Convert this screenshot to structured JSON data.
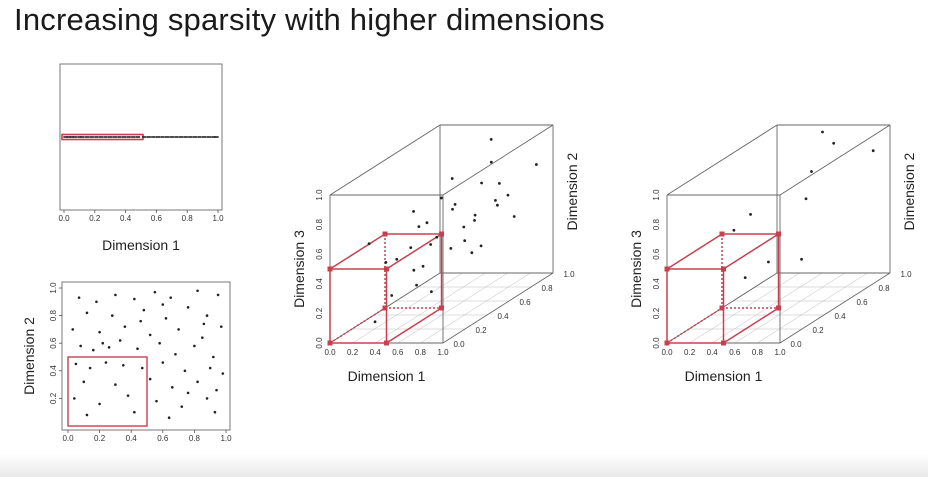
{
  "slide": {
    "title": "Increasing sparsity with higher dimensions"
  },
  "colors": {
    "highlight": "#c8404e",
    "points": "#222222",
    "axes": "#555555",
    "grid": "#bbbbbb"
  },
  "chart_data": [
    {
      "type": "scatter",
      "dimensions": 1,
      "xlabel": "Dimension 1",
      "xlim": [
        0,
        1
      ],
      "x_ticks": [
        "0.0",
        "0.2",
        "0.4",
        "0.6",
        "0.8",
        "1.0"
      ],
      "highlight_region": {
        "x": [
          0,
          0.5
        ]
      },
      "points_x": [
        0.01,
        0.03,
        0.05,
        0.07,
        0.1,
        0.12,
        0.15,
        0.18,
        0.21,
        0.24,
        0.27,
        0.3,
        0.33,
        0.36,
        0.39,
        0.42,
        0.45,
        0.48,
        0.52,
        0.55,
        0.58,
        0.61,
        0.64,
        0.67,
        0.7,
        0.73,
        0.76,
        0.79,
        0.82,
        0.85,
        0.88,
        0.91,
        0.94,
        0.97,
        0.99
      ]
    },
    {
      "type": "scatter",
      "dimensions": 2,
      "xlabel": "Dimension 1",
      "ylabel": "Dimension 2",
      "xlim": [
        0,
        1
      ],
      "ylim": [
        0,
        1
      ],
      "x_ticks": [
        "0.0",
        "0.2",
        "0.4",
        "0.6",
        "0.8",
        "1.0"
      ],
      "y_ticks": [
        "0.2",
        "0.4",
        "0.6",
        "0.8",
        "1.0"
      ],
      "highlight_region": {
        "x": [
          0,
          0.5
        ],
        "y": [
          0,
          0.5
        ]
      },
      "points": [
        [
          0.07,
          0.93
        ],
        [
          0.18,
          0.9
        ],
        [
          0.3,
          0.95
        ],
        [
          0.42,
          0.92
        ],
        [
          0.55,
          0.97
        ],
        [
          0.65,
          0.93
        ],
        [
          0.82,
          0.98
        ],
        [
          0.95,
          0.95
        ],
        [
          0.12,
          0.82
        ],
        [
          0.28,
          0.8
        ],
        [
          0.48,
          0.84
        ],
        [
          0.62,
          0.78
        ],
        [
          0.76,
          0.86
        ],
        [
          0.88,
          0.8
        ],
        [
          0.03,
          0.7
        ],
        [
          0.2,
          0.68
        ],
        [
          0.36,
          0.72
        ],
        [
          0.52,
          0.66
        ],
        [
          0.7,
          0.7
        ],
        [
          0.85,
          0.64
        ],
        [
          0.97,
          0.72
        ],
        [
          0.08,
          0.58
        ],
        [
          0.16,
          0.55
        ],
        [
          0.22,
          0.6
        ],
        [
          0.26,
          0.57
        ],
        [
          0.44,
          0.56
        ],
        [
          0.58,
          0.6
        ],
        [
          0.68,
          0.52
        ],
        [
          0.8,
          0.58
        ],
        [
          0.92,
          0.5
        ],
        [
          0.05,
          0.45
        ],
        [
          0.14,
          0.42
        ],
        [
          0.24,
          0.46
        ],
        [
          0.35,
          0.44
        ],
        [
          0.47,
          0.42
        ],
        [
          0.6,
          0.46
        ],
        [
          0.74,
          0.4
        ],
        [
          0.9,
          0.42
        ],
        [
          0.98,
          0.38
        ],
        [
          0.1,
          0.32
        ],
        [
          0.3,
          0.3
        ],
        [
          0.52,
          0.34
        ],
        [
          0.66,
          0.28
        ],
        [
          0.82,
          0.32
        ],
        [
          0.94,
          0.26
        ],
        [
          0.04,
          0.2
        ],
        [
          0.2,
          0.16
        ],
        [
          0.38,
          0.22
        ],
        [
          0.56,
          0.18
        ],
        [
          0.72,
          0.14
        ],
        [
          0.88,
          0.2
        ],
        [
          0.12,
          0.08
        ],
        [
          0.42,
          0.1
        ],
        [
          0.64,
          0.06
        ],
        [
          0.93,
          0.1
        ],
        [
          0.76,
          0.24
        ],
        [
          0.33,
          0.62
        ],
        [
          0.6,
          0.88
        ],
        [
          0.46,
          0.76
        ],
        [
          0.86,
          0.74
        ]
      ]
    },
    {
      "type": "scatter",
      "dimensions": 3,
      "xlabel": "Dimension 1",
      "ylabel": "Dimension 2",
      "zlabel": "Dimension 3",
      "xlim": [
        0,
        1
      ],
      "ylim": [
        0,
        1
      ],
      "zlim": [
        0,
        1
      ],
      "x_ticks": [
        "0.0",
        "0.2",
        "0.4",
        "0.6",
        "0.8",
        "1.0"
      ],
      "y_ticks": [
        "0.0",
        "0.2",
        "0.4",
        "0.6",
        "0.8",
        "1.0"
      ],
      "z_ticks": [
        "0.0",
        "0.2",
        "0.4",
        "0.6",
        "0.8",
        "1.0"
      ],
      "highlight_region": {
        "x": [
          0,
          0.5
        ],
        "y": [
          0,
          0.5
        ],
        "z": [
          0,
          0.5
        ]
      },
      "points": [
        [
          0.55,
          0.9,
          0.95
        ],
        [
          0.6,
          0.85,
          0.82
        ],
        [
          0.72,
          0.8,
          0.7
        ],
        [
          0.65,
          0.95,
          0.55
        ],
        [
          0.4,
          0.7,
          0.78
        ],
        [
          0.5,
          0.6,
          0.62
        ],
        [
          0.45,
          0.55,
          0.72
        ],
        [
          0.62,
          0.5,
          0.7
        ],
        [
          0.7,
          0.6,
          0.58
        ],
        [
          0.8,
          0.7,
          0.6
        ],
        [
          0.9,
          0.75,
          0.5
        ],
        [
          0.95,
          0.9,
          0.78
        ],
        [
          0.35,
          0.4,
          0.7
        ],
        [
          0.3,
          0.5,
          0.55
        ],
        [
          0.55,
          0.35,
          0.5
        ],
        [
          0.68,
          0.4,
          0.45
        ],
        [
          0.85,
          0.5,
          0.42
        ],
        [
          0.9,
          0.3,
          0.55
        ],
        [
          0.75,
          0.2,
          0.62
        ],
        [
          0.58,
          0.25,
          0.4
        ],
        [
          0.45,
          0.3,
          0.35
        ],
        [
          0.62,
          0.15,
          0.32
        ],
        [
          0.8,
          0.1,
          0.3
        ],
        [
          0.3,
          0.2,
          0.45
        ],
        [
          0.2,
          0.15,
          0.6
        ],
        [
          0.35,
          0.05,
          0.12
        ],
        [
          0.6,
          0.6,
          0.5
        ],
        [
          0.5,
          0.8,
          0.45
        ],
        [
          0.72,
          0.55,
          0.35
        ],
        [
          0.42,
          0.45,
          0.6
        ],
        [
          0.25,
          0.35,
          0.4
        ],
        [
          0.52,
          0.2,
          0.55
        ],
        [
          0.66,
          0.7,
          0.75
        ],
        [
          0.88,
          0.6,
          0.68
        ],
        [
          0.4,
          0.15,
          0.25
        ]
      ]
    },
    {
      "type": "scatter",
      "dimensions": 3,
      "xlabel": "Dimension 1",
      "ylabel": "Dimension 2",
      "zlabel": "Dimension 3",
      "xlim": [
        0,
        1
      ],
      "ylim": [
        0,
        1
      ],
      "zlim": [
        0,
        1
      ],
      "x_ticks": [
        "0.0",
        "0.2",
        "0.4",
        "0.6",
        "0.8",
        "1.0"
      ],
      "y_ticks": [
        "0.0",
        "0.2",
        "0.4",
        "0.6",
        "0.8",
        "1.0"
      ],
      "z_ticks": [
        "0.0",
        "0.2",
        "0.4",
        "0.6",
        "0.8",
        "1.0"
      ],
      "highlight_region": {
        "x": [
          0,
          0.5
        ],
        "y": [
          0,
          0.5
        ],
        "z": [
          0,
          0.5
        ]
      },
      "points": [
        [
          0.5,
          0.9,
          1.0
        ],
        [
          0.55,
          0.95,
          0.9
        ],
        [
          0.9,
          0.95,
          0.85
        ],
        [
          0.5,
          0.8,
          0.78
        ],
        [
          0.5,
          0.75,
          0.62
        ],
        [
          0.35,
          0.4,
          0.68
        ],
        [
          0.4,
          0.3,
          0.3
        ],
        [
          0.85,
          0.35,
          0.4
        ],
        [
          0.8,
          0.1,
          0.5
        ],
        [
          0.3,
          0.3,
          0.62
        ]
      ]
    }
  ]
}
